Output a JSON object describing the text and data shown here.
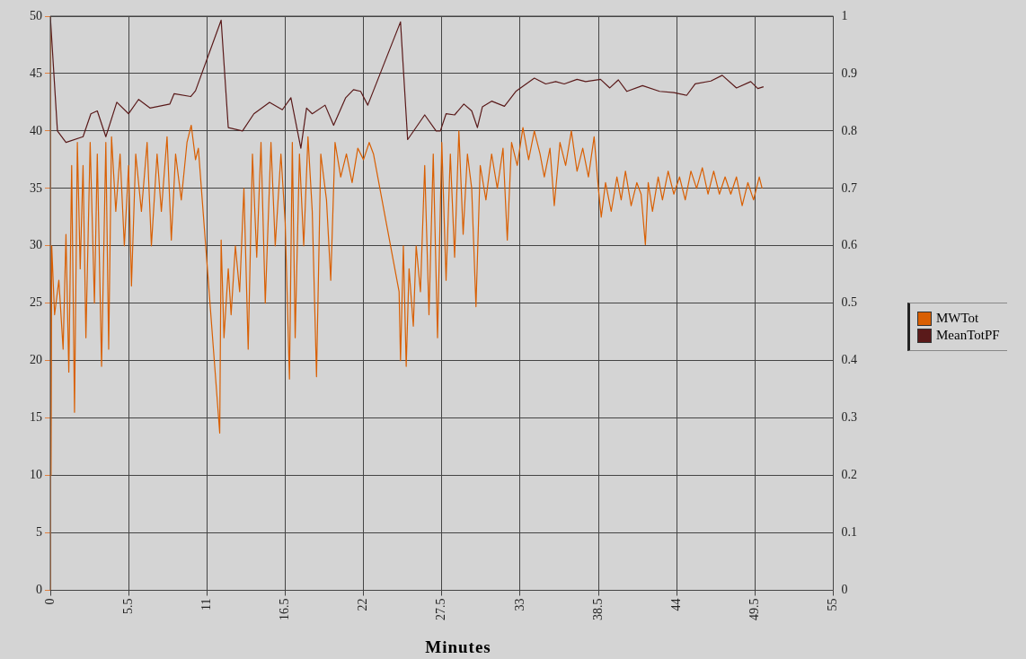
{
  "chart_data": {
    "type": "line",
    "xlabel": "Minutes",
    "xlim": [
      0,
      55
    ],
    "xticks": [
      0,
      5.5,
      11,
      16.5,
      22,
      27.5,
      33,
      38.5,
      44,
      49.5,
      55
    ],
    "ylim": [
      0,
      50
    ],
    "yticks": [
      0,
      5,
      10,
      15,
      20,
      25,
      30,
      35,
      40,
      45,
      50
    ],
    "y2lim": [
      0,
      1
    ],
    "y2ticks": [
      0,
      0.1,
      0.2,
      0.3,
      0.4,
      0.5,
      0.6,
      0.7,
      0.8,
      0.9,
      1
    ],
    "grid": true,
    "legend": "right",
    "marker": "none",
    "series": [
      {
        "name": "MWTot",
        "color": "#d95f02",
        "x": [
          0,
          0.05,
          0.1,
          0.3,
          0.6,
          0.9,
          1.1,
          1.3,
          1.5,
          1.7,
          1.9,
          2.1,
          2.3,
          2.5,
          2.8,
          3.1,
          3.3,
          3.6,
          3.9,
          4.1,
          4.3,
          4.6,
          4.9,
          5.2,
          5.5,
          5.7,
          6.0,
          6.4,
          6.8,
          7.1,
          7.5,
          7.8,
          8.2,
          8.5,
          8.8,
          9.2,
          9.6,
          9.9,
          10.2,
          10.4,
          11.9,
          12.0,
          12.2,
          12.5,
          12.7,
          13.0,
          13.3,
          13.6,
          13.9,
          14.2,
          14.5,
          14.8,
          15.1,
          15.5,
          15.8,
          16.2,
          16.5,
          16.8,
          17.0,
          17.2,
          17.5,
          17.8,
          18.1,
          18.4,
          18.7,
          19.0,
          19.4,
          19.7,
          20.0,
          20.4,
          20.8,
          21.2,
          21.6,
          22.0,
          22.4,
          22.7,
          24.5,
          24.6,
          24.8,
          25.0,
          25.2,
          25.5,
          25.7,
          26.0,
          26.3,
          26.6,
          26.9,
          27.2,
          27.5,
          27.8,
          28.1,
          28.4,
          28.7,
          29.0,
          29.3,
          29.6,
          29.9,
          30.2,
          30.6,
          31.0,
          31.4,
          31.8,
          32.1,
          32.4,
          32.8,
          33.2,
          33.6,
          34.0,
          34.4,
          34.7,
          35.1,
          35.4,
          35.8,
          36.2,
          36.6,
          37.0,
          37.4,
          37.8,
          38.2,
          38.5,
          38.7,
          39.0,
          39.4,
          39.8,
          40.1,
          40.4,
          40.8,
          41.2,
          41.5,
          41.8,
          42.0,
          42.3,
          42.7,
          43.0,
          43.4,
          43.8,
          44.2,
          44.6,
          45.0,
          45.4,
          45.8,
          46.2,
          46.6,
          47.0,
          47.4,
          47.8,
          48.2,
          48.6,
          49.0,
          49.4,
          49.8,
          50.0
        ],
        "values": [
          27,
          10,
          30,
          24,
          27,
          21,
          31,
          19,
          37,
          15.5,
          39,
          28,
          37,
          22,
          39,
          25,
          38,
          19.5,
          39,
          21,
          39.5,
          33,
          38,
          30,
          37,
          26.5,
          38,
          33,
          39,
          30,
          38,
          33,
          39.5,
          30.5,
          38,
          34,
          39,
          40.5,
          37.5,
          38.5,
          13.7,
          30.5,
          22,
          28,
          24,
          30,
          26,
          35,
          21,
          38,
          29,
          39,
          25,
          39,
          30,
          38,
          32,
          18.4,
          39,
          22,
          38,
          30,
          39.5,
          33,
          18.6,
          38,
          34,
          27,
          39,
          36,
          38,
          35.5,
          38.5,
          37.5,
          39,
          38,
          26,
          20,
          30,
          19.5,
          28,
          23,
          30,
          26,
          37,
          24,
          38,
          22,
          39,
          27,
          38,
          29,
          40,
          31,
          38,
          35,
          24.7,
          37,
          34,
          38,
          35,
          38.5,
          30.5,
          39,
          37,
          40.3,
          37.5,
          40,
          38,
          36,
          38.5,
          33.5,
          39,
          37,
          40,
          36.5,
          38.5,
          36,
          39.5,
          35,
          32.5,
          35.5,
          33,
          36,
          34,
          36.5,
          33.5,
          35.5,
          34.5,
          30.1,
          35.5,
          33,
          36,
          34,
          36.5,
          34.5,
          36,
          34,
          36.5,
          35,
          36.8,
          34.5,
          36.5,
          34.5,
          36,
          34.5,
          36,
          33.5,
          35.5,
          34,
          36,
          35
        ]
      },
      {
        "name": "MeanTotPF",
        "color": "#5a1a1a",
        "axis": "y2",
        "x": [
          0,
          0.5,
          1.1,
          2.3,
          2.85,
          3.3,
          3.9,
          4.67,
          5.5,
          6.2,
          7.0,
          8.4,
          8.7,
          9.86,
          10.2,
          12.0,
          12.5,
          13.5,
          14.3,
          15.4,
          16.3,
          16.9,
          17.6,
          18.0,
          18.4,
          19.3,
          19.9,
          20.75,
          21.3,
          21.8,
          22.3,
          24.6,
          25.1,
          26.3,
          27.1,
          27.4,
          27.8,
          28.4,
          29.05,
          29.6,
          30.0,
          30.35,
          31.0,
          31.9,
          32.7,
          34.0,
          34.8,
          35.5,
          36.1,
          37.0,
          37.6,
          38.65,
          39.3,
          39.9,
          40.5,
          41.6,
          42.8,
          43.8,
          44.7,
          45.3,
          46.4,
          47.2,
          48.2,
          49.2,
          49.7,
          50.1
        ],
        "values": [
          1.0,
          0.8,
          0.78,
          0.79,
          0.83,
          0.835,
          0.79,
          0.85,
          0.83,
          0.855,
          0.84,
          0.847,
          0.865,
          0.86,
          0.87,
          0.993,
          0.806,
          0.8,
          0.83,
          0.85,
          0.837,
          0.858,
          0.77,
          0.84,
          0.83,
          0.845,
          0.81,
          0.858,
          0.872,
          0.869,
          0.845,
          0.99,
          0.785,
          0.828,
          0.8,
          0.8,
          0.83,
          0.828,
          0.847,
          0.835,
          0.806,
          0.842,
          0.852,
          0.843,
          0.869,
          0.892,
          0.882,
          0.886,
          0.882,
          0.89,
          0.886,
          0.89,
          0.875,
          0.889,
          0.869,
          0.879,
          0.869,
          0.867,
          0.862,
          0.882,
          0.887,
          0.897,
          0.875,
          0.886,
          0.874,
          0.877
        ]
      }
    ]
  }
}
